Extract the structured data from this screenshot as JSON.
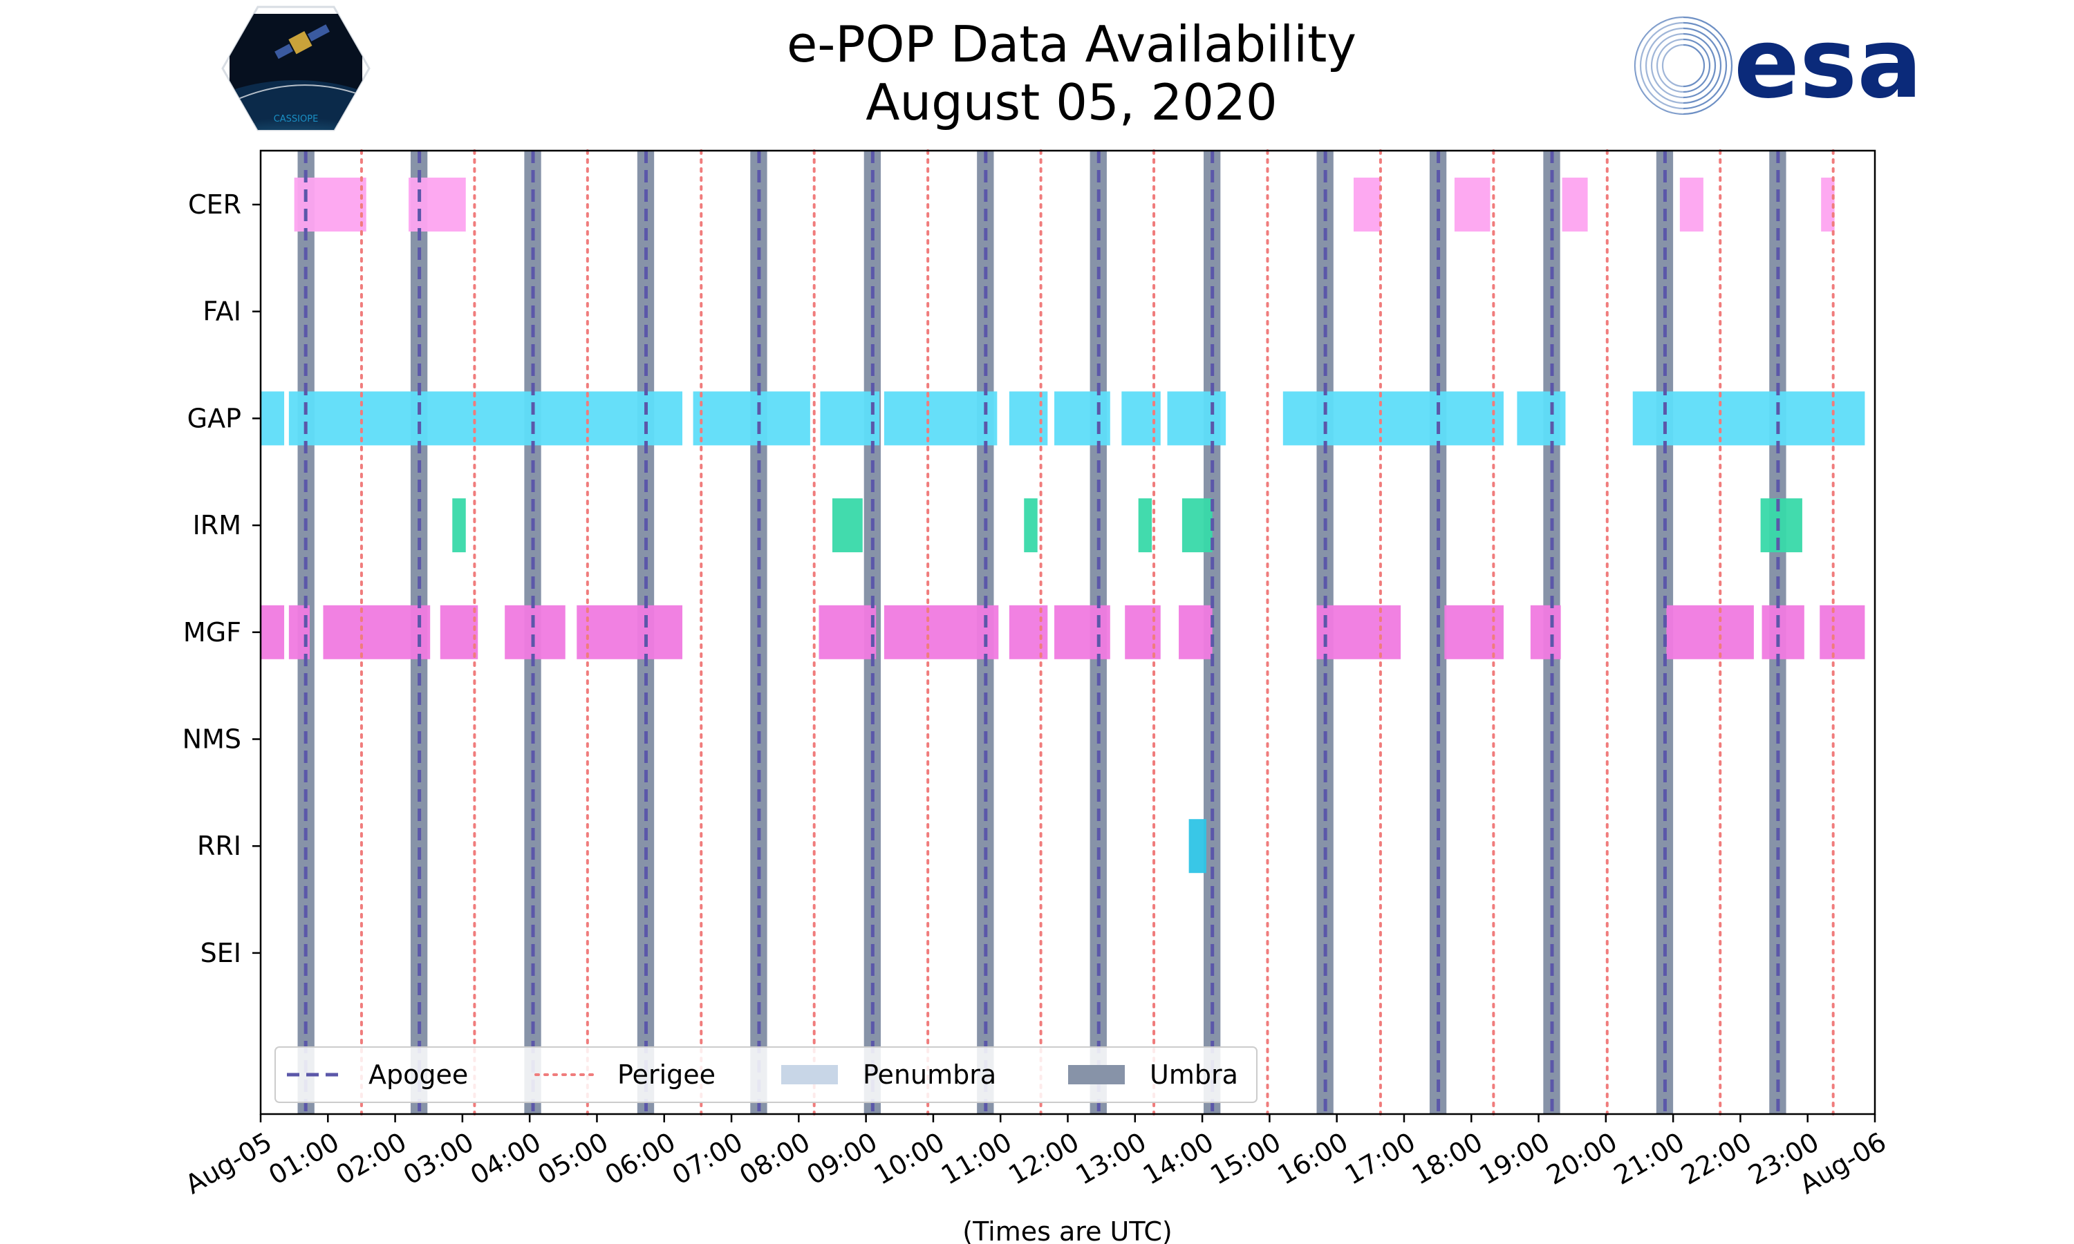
{
  "title": {
    "line1": "e-POP Data Availability",
    "line2": "August 05, 2020"
  },
  "logos": {
    "left_text": "CASSIOPE",
    "right_text": "esa"
  },
  "colors": {
    "CER": "#FDA4F0",
    "GAP": "#5EDDF9",
    "IRM": "#38D9A9",
    "MGF": "#F07AE0",
    "RRI": "#2EC4E6",
    "umbra": "#8793A8",
    "penumbra": "#C8D6E7",
    "apogee": "#5B57A9",
    "perigee": "#F07C7C"
  },
  "chart_data": {
    "type": "timeline",
    "title": "e-POP Data Availability August 05, 2020",
    "xlabel": "(Times are UTC)",
    "xlim": [
      0,
      24
    ],
    "x_ticks": [
      {
        "h": 0,
        "label": "Aug-05"
      },
      {
        "h": 1,
        "label": "01:00"
      },
      {
        "h": 2,
        "label": "02:00"
      },
      {
        "h": 3,
        "label": "03:00"
      },
      {
        "h": 4,
        "label": "04:00"
      },
      {
        "h": 5,
        "label": "05:00"
      },
      {
        "h": 6,
        "label": "06:00"
      },
      {
        "h": 7,
        "label": "07:00"
      },
      {
        "h": 8,
        "label": "08:00"
      },
      {
        "h": 9,
        "label": "09:00"
      },
      {
        "h": 10,
        "label": "10:00"
      },
      {
        "h": 11,
        "label": "11:00"
      },
      {
        "h": 12,
        "label": "12:00"
      },
      {
        "h": 13,
        "label": "13:00"
      },
      {
        "h": 14,
        "label": "14:00"
      },
      {
        "h": 15,
        "label": "15:00"
      },
      {
        "h": 16,
        "label": "16:00"
      },
      {
        "h": 17,
        "label": "17:00"
      },
      {
        "h": 18,
        "label": "18:00"
      },
      {
        "h": 19,
        "label": "19:00"
      },
      {
        "h": 20,
        "label": "20:00"
      },
      {
        "h": 21,
        "label": "21:00"
      },
      {
        "h": 22,
        "label": "22:00"
      },
      {
        "h": 23,
        "label": "23:00"
      },
      {
        "h": 24,
        "label": "Aug-06"
      }
    ],
    "instruments": [
      "CER",
      "FAI",
      "GAP",
      "IRM",
      "MGF",
      "NMS",
      "RRI",
      "SEI"
    ],
    "availability": {
      "CER": [
        [
          0.5,
          1.57
        ],
        [
          2.2,
          3.05
        ],
        [
          16.25,
          16.65
        ],
        [
          17.75,
          18.28
        ],
        [
          19.35,
          19.73
        ],
        [
          21.1,
          21.45
        ],
        [
          23.2,
          23.4
        ]
      ],
      "FAI": [],
      "GAP": [
        [
          0.0,
          0.35
        ],
        [
          0.42,
          6.27
        ],
        [
          6.43,
          8.17
        ],
        [
          8.32,
          9.2
        ],
        [
          9.27,
          10.95
        ],
        [
          11.13,
          11.7
        ],
        [
          11.8,
          12.63
        ],
        [
          12.8,
          13.38
        ],
        [
          13.48,
          14.35
        ],
        [
          15.2,
          18.48
        ],
        [
          18.68,
          19.4
        ],
        [
          20.4,
          23.85
        ]
      ],
      "IRM": [
        [
          2.85,
          3.05
        ],
        [
          8.5,
          8.95
        ],
        [
          11.35,
          11.55
        ],
        [
          13.05,
          13.25
        ],
        [
          13.7,
          14.15
        ],
        [
          22.3,
          22.92
        ]
      ],
      "MGF": [
        [
          0.0,
          0.35
        ],
        [
          0.42,
          0.73
        ],
        [
          0.93,
          2.52
        ],
        [
          2.67,
          3.23
        ],
        [
          3.63,
          4.53
        ],
        [
          4.7,
          6.27
        ],
        [
          8.3,
          9.15
        ],
        [
          9.27,
          10.97
        ],
        [
          11.13,
          11.7
        ],
        [
          11.8,
          12.63
        ],
        [
          12.85,
          13.38
        ],
        [
          13.65,
          14.15
        ],
        [
          15.7,
          16.95
        ],
        [
          17.6,
          18.48
        ],
        [
          18.88,
          19.33
        ],
        [
          20.9,
          22.2
        ],
        [
          22.32,
          22.95
        ],
        [
          23.18,
          23.85
        ]
      ],
      "NMS": [],
      "RRI": [
        [
          13.8,
          14.06
        ]
      ],
      "SEI": []
    },
    "umbra": [
      [
        0.55,
        0.8
      ],
      [
        2.23,
        2.48
      ],
      [
        3.92,
        4.17
      ],
      [
        5.6,
        5.85
      ],
      [
        7.28,
        7.53
      ],
      [
        8.97,
        9.22
      ],
      [
        10.65,
        10.9
      ],
      [
        12.33,
        12.58
      ],
      [
        14.02,
        14.27
      ],
      [
        15.7,
        15.95
      ],
      [
        17.38,
        17.63
      ],
      [
        19.07,
        19.32
      ],
      [
        20.75,
        21.0
      ],
      [
        22.43,
        22.68
      ]
    ],
    "apogee": [
      0.67,
      2.36,
      4.05,
      5.73,
      7.41,
      9.1,
      10.78,
      12.46,
      14.15,
      15.83,
      17.51,
      19.2,
      20.88,
      22.56
    ],
    "perigee": [
      1.5,
      3.18,
      4.86,
      6.55,
      8.23,
      9.92,
      11.6,
      13.28,
      14.97,
      16.65,
      18.33,
      20.02,
      21.7,
      23.38
    ],
    "legend": {
      "position": "lower-left",
      "entries": [
        {
          "key": "apogee",
          "label": "Apogee",
          "style": "dashed"
        },
        {
          "key": "perigee",
          "label": "Perigee",
          "style": "dotted"
        },
        {
          "key": "penumbra",
          "label": "Penumbra",
          "style": "patch"
        },
        {
          "key": "umbra",
          "label": "Umbra",
          "style": "patch"
        }
      ]
    }
  }
}
